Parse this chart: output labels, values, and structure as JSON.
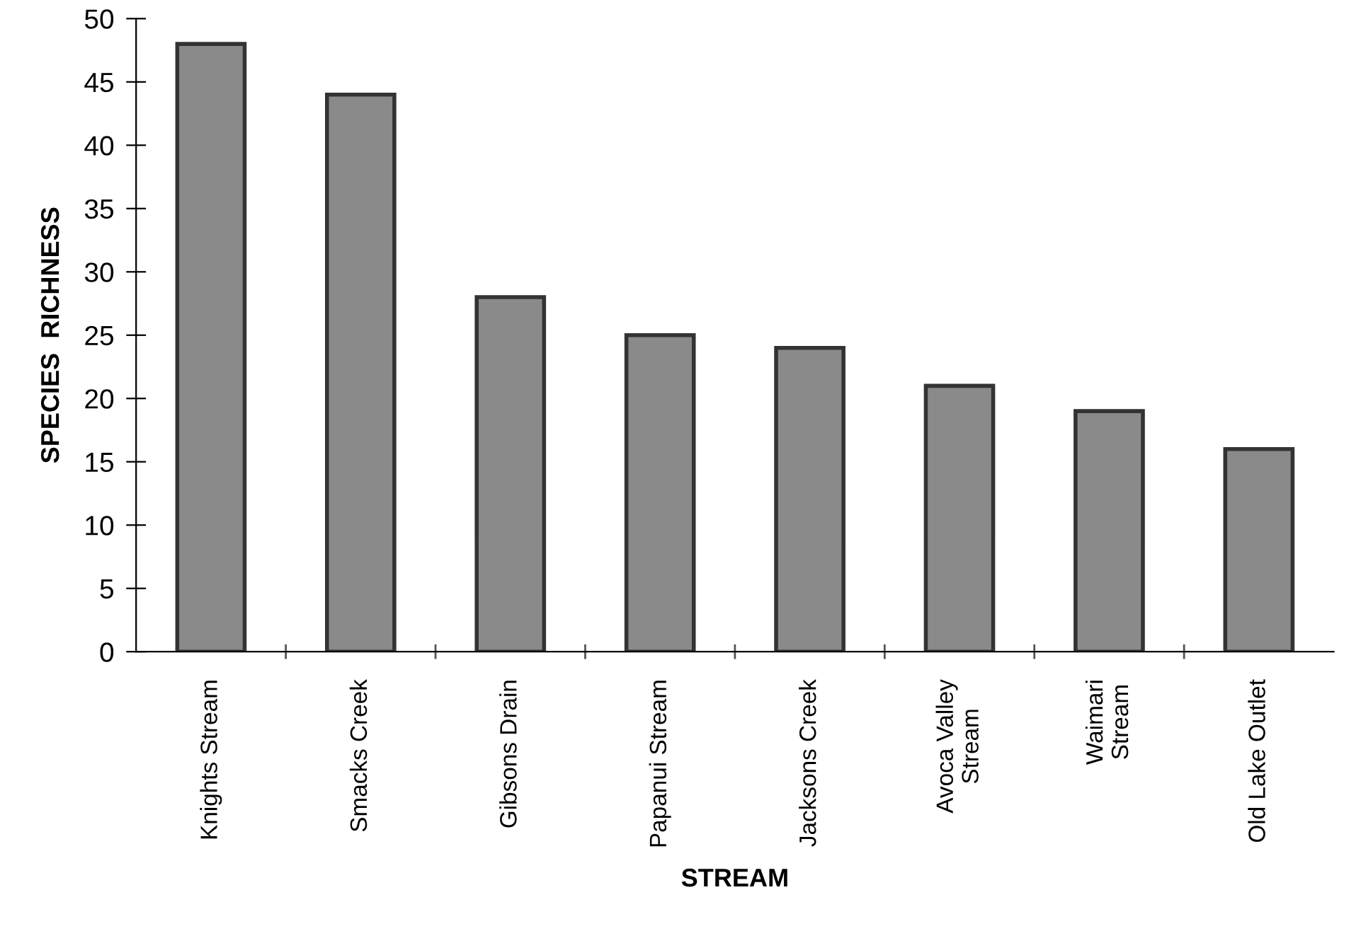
{
  "chart_data": {
    "type": "bar",
    "xlabel": "STREAM",
    "ylabel": "SPECIES  RICHNESS",
    "categories": [
      "Knights Stream",
      "Smacks Creek",
      "Gibsons Drain",
      "Papanui Stream",
      "Jacksons Creek",
      "Avoca Valley\nStream",
      "Waimari\nStream",
      "Old Lake Outlet"
    ],
    "values": [
      48,
      44,
      28,
      25,
      24,
      21,
      19,
      16
    ],
    "color": "#8a8a8a",
    "ylim": [
      0,
      50
    ],
    "yticks": [
      0,
      5,
      10,
      15,
      20,
      25,
      30,
      35,
      40,
      45,
      50
    ],
    "grid": false
  }
}
